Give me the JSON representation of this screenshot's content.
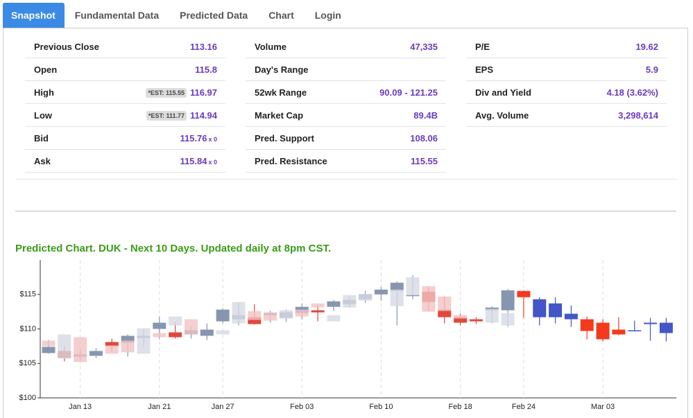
{
  "tabs": {
    "items": [
      "Snapshot",
      "Fundamental Data",
      "Predicted Data",
      "Chart",
      "Login"
    ],
    "active": 0
  },
  "stats": {
    "columns": [
      [
        {
          "label": "Previous Close",
          "value": "113.16"
        },
        {
          "label": "Open",
          "value": "115.8"
        },
        {
          "label": "High",
          "badge": "*EST: 115.55",
          "value": "116.97"
        },
        {
          "label": "Low",
          "badge": "*EST: 111.77",
          "value": "114.94"
        },
        {
          "label": "Bid",
          "value": "115.76",
          "suffix": "x 0"
        },
        {
          "label": "Ask",
          "value": "115.84",
          "suffix": "x 0"
        }
      ],
      [
        {
          "label": "Volume",
          "value": "47,335"
        },
        {
          "label": "Day's Range"
        },
        {
          "label": "52wk Range",
          "value": "90.09 - 121.25"
        },
        {
          "label": "Market Cap",
          "value": "89.4B"
        },
        {
          "label": "Pred. Support",
          "value": "108.06"
        },
        {
          "label": "Pred. Resistance",
          "value": "115.55"
        }
      ],
      [
        {
          "label": "P/E",
          "value": "19.62"
        },
        {
          "label": "EPS",
          "value": "5.9"
        },
        {
          "label": "Div and Yield",
          "value": "4.18 (3.62%)"
        },
        {
          "label": "Avg. Volume",
          "value": "3,298,614"
        }
      ]
    ]
  },
  "chart_data": {
    "type": "candlestick",
    "title": "Predicted Chart. DUK - Next 10 Days. Updated daily at 8pm CST.",
    "categories": [
      null,
      null,
      "Jan 13",
      null,
      null,
      null,
      null,
      "Jan 21",
      null,
      null,
      null,
      "Jan 27",
      null,
      null,
      null,
      null,
      "Feb 03",
      null,
      null,
      null,
      null,
      "Feb 10",
      null,
      null,
      null,
      null,
      "Feb 18",
      null,
      null,
      null,
      "Feb 24",
      null,
      null,
      null,
      null,
      "Mar 03",
      null,
      null,
      null,
      null
    ],
    "ylim": [
      100,
      120
    ],
    "yticks": [
      {
        "value": 100,
        "label": "$100"
      },
      {
        "value": 105,
        "label": "$105"
      },
      {
        "value": 110,
        "label": "$110"
      },
      {
        "value": 115,
        "label": "$115"
      }
    ],
    "series": [
      {
        "open": [
          106.5,
          106.8,
          106.0,
          106.1,
          108.1,
          108.0,
          108.7,
          110.0,
          109.5,
          109.2,
          109.0,
          111.1,
          111.4,
          111.7,
          112.0,
          111.6,
          112.3,
          112.7,
          113.2,
          113.6,
          114.3,
          115.0,
          115.5,
          114.8,
          115.4,
          112.8,
          111.7,
          111.4,
          112.7,
          112.7,
          115.5,
          114.3,
          113.7,
          112.2,
          111.4,
          110.9,
          109.9,
          109.8,
          110.9,
          110.9
        ],
        "high": [
          108.4,
          107.5,
          107.0,
          107.2,
          108.6,
          109.2,
          110.0,
          111.8,
          111.0,
          110.4,
          110.8,
          113.0,
          113.8,
          113.6,
          112.6,
          112.8,
          113.7,
          113.4,
          114.2,
          114.6,
          115.5,
          116.1,
          116.9,
          117.8,
          116.1,
          114.7,
          112.2,
          111.7,
          113.3,
          115.8,
          115.6,
          114.6,
          114.6,
          113.4,
          111.8,
          111.4,
          111.7,
          111.2,
          111.6,
          111.6
        ],
        "low": [
          106.4,
          105.3,
          105.3,
          105.8,
          106.6,
          106.0,
          107.3,
          108.5,
          108.6,
          108.6,
          108.4,
          110.8,
          110.5,
          110.6,
          110.9,
          111.0,
          111.4,
          111.1,
          112.6,
          113.1,
          113.8,
          114.1,
          110.5,
          114.3,
          112.6,
          110.8,
          110.5,
          110.7,
          110.8,
          110.3,
          111.6,
          110.5,
          110.8,
          110.3,
          108.5,
          108.2,
          109.1,
          109.7,
          108.3,
          108.2
        ],
        "close": [
          107.4,
          105.8,
          106.3,
          106.8,
          107.5,
          109.0,
          109.0,
          110.9,
          108.8,
          109.8,
          109.9,
          112.8,
          112.0,
          110.7,
          112.3,
          112.4,
          113.2,
          112.4,
          114.0,
          114.2,
          115.0,
          115.7,
          116.7,
          114.9,
          113.9,
          111.7,
          110.9,
          111.1,
          113.1,
          115.6,
          114.6,
          111.7,
          111.7,
          111.4,
          109.7,
          108.5,
          109.2,
          109.7,
          110.7,
          109.4
        ],
        "colors": [
          "#8796b0",
          "#e0483c",
          "#8796b0",
          "#8796b0",
          "#e0483c",
          "#8796b0",
          "#8796b0",
          "#8796b0",
          "#e0483c",
          "#8796b0",
          "#8796b0",
          "#8796b0",
          "#8796b0",
          "#e0483c",
          "#8796b0",
          "#8796b0",
          "#8796b0",
          "#e0483c",
          "#8796b0",
          "#8796b0",
          "#8796b0",
          "#8796b0",
          "#8796b0",
          "#8796b0",
          "#e0483c",
          "#e0483c",
          "#e0483c",
          "#e0483c",
          "#8796b0",
          "#8796b0",
          "#f43a1c",
          "#4355c7",
          "#4355c7",
          "#4355c7",
          "#f43a1c",
          "#f43a1c",
          "#f43a1c",
          "#4355c7",
          "#4355c7",
          "#4355c7"
        ]
      },
      {
        "open": [
          108.3,
          109.2,
          108.8,
          null,
          107.6,
          108.3,
          110.1,
          109.4,
          111.8,
          111.4,
          null,
          109.8,
          113.9,
          112.6,
          112.4,
          112.7,
          112.8,
          113.7,
          112.0,
          114.9,
          115.1,
          null,
          115.7,
          117.5,
          116.2,
          114.7,
          112.0,
          null,
          112.9,
          112.3,
          null,
          null,
          null,
          null,
          null,
          null,
          null,
          null,
          null,
          null
        ],
        "close": [
          107.5,
          105.7,
          105.2,
          null,
          106.4,
          106.6,
          106.4,
          108.8,
          110.5,
          109.2,
          null,
          109.2,
          110.8,
          111.3,
          111.2,
          111.5,
          111.8,
          113.1,
          111.1,
          113.1,
          114.1,
          null,
          113.3,
          114.9,
          112.5,
          112.6,
          111.5,
          null,
          110.9,
          110.5,
          null,
          null,
          null,
          null,
          null,
          null,
          null,
          null,
          null,
          null
        ],
        "colors": [
          "#f1c3c3",
          "#d6dae3",
          "#f1c3c3",
          null,
          "#f1c3c3",
          "#f1c3c3",
          "#d6dae3",
          "#f1c3c3",
          "#d6dae3",
          "#f1c3c3",
          null,
          "#d6dae3",
          "#d6dae3",
          "#f1c3c3",
          "#f1c3c3",
          "#d6dae3",
          "#f1c3c3",
          "#f1c3c3",
          "#d6dae3",
          "#d6dae3",
          "#d6dae3",
          null,
          "#d6dae3",
          "#d6dae3",
          "#f1c3c3",
          "#f1c3c3",
          "#f1c3c3",
          null,
          "#d6dae3",
          "#d6dae3",
          null,
          null,
          null,
          null,
          null,
          null,
          null,
          null,
          null,
          null
        ]
      }
    ]
  }
}
